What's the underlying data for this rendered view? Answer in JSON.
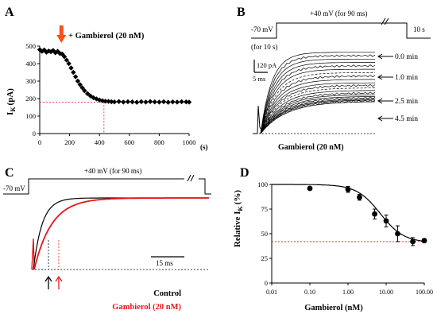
{
  "chart_data": [
    {
      "panel": "A",
      "type": "scatter",
      "ylabel_main": "I",
      "ylabel_sub": "K",
      "ylabel_unit": "(pA)",
      "x_unit": "(s)",
      "xlim": [
        0,
        1000
      ],
      "ylim": [
        0,
        500
      ],
      "x_ticks": [
        0,
        200,
        400,
        600,
        800,
        1000
      ],
      "y_ticks": [
        0,
        100,
        200,
        300,
        400,
        500
      ],
      "annotation": "+ Gambierol (20 nM)",
      "arrow_x": 145,
      "reference_y": 180,
      "reference_x": 430,
      "x": [
        0,
        15,
        30,
        45,
        60,
        75,
        90,
        105,
        120,
        135,
        150,
        165,
        180,
        195,
        210,
        225,
        240,
        255,
        270,
        285,
        300,
        320,
        340,
        360,
        380,
        400,
        420,
        440,
        460,
        480,
        500,
        530,
        560,
        590,
        620,
        650,
        680,
        710,
        740,
        770,
        800,
        830,
        860,
        890,
        920,
        950,
        980,
        1000
      ],
      "y": [
        480,
        470,
        478,
        465,
        472,
        468,
        475,
        462,
        470,
        458,
        455,
        440,
        420,
        400,
        375,
        350,
        325,
        300,
        280,
        262,
        245,
        228,
        215,
        205,
        198,
        192,
        188,
        185,
        184,
        182,
        181,
        183,
        180,
        182,
        181,
        179,
        182,
        180,
        183,
        181,
        180,
        182,
        179,
        181,
        180,
        182,
        181,
        180
      ]
    },
    {
      "panel": "B",
      "type": "line",
      "protocol_left": "-70 mV",
      "protocol_for": "(for 10 s)",
      "protocol_step": "+40 mV (for 90 ms)",
      "protocol_right": "10 s",
      "scale_current": "120 pA",
      "scale_time": "5 ms",
      "time_labels": [
        "0.0 min",
        "1.0 min",
        "2.5 min",
        "4.5 min"
      ],
      "label_bottom": "Gambierol (20 nM)",
      "series_steady_state": [
        480,
        460,
        440,
        420,
        400,
        380,
        360,
        340,
        320,
        300,
        285,
        270,
        255,
        240,
        230,
        220,
        212,
        205,
        200,
        195,
        190
      ]
    },
    {
      "panel": "C",
      "type": "line",
      "protocol_left": "-70 mV",
      "protocol_step": "+40 mV (for 90 ms)",
      "scale_time": "15 ms",
      "legend": [
        {
          "name": "Control",
          "color": "#000000"
        },
        {
          "name": "Gambierol (20 nM)",
          "color": "#e8141b"
        }
      ]
    },
    {
      "panel": "D",
      "type": "scatter",
      "x_scale": "log",
      "ylabel_main": "Relative I",
      "ylabel_sub": "K",
      "ylabel_unit": "(%)",
      "xlabel": "Gambierol (nM)",
      "xlim": [
        0.01,
        100
      ],
      "ylim": [
        0,
        100
      ],
      "x_ticks": [
        "0.01",
        "0.10",
        "1.00",
        "10.00",
        "100.00"
      ],
      "y_ticks": [
        0,
        25,
        50,
        75,
        100
      ],
      "x": [
        0.1,
        1,
        2,
        5,
        10,
        20,
        50,
        100
      ],
      "y": [
        96,
        95,
        87,
        70,
        63,
        50,
        42,
        43
      ],
      "err": [
        0,
        3,
        3,
        5,
        6,
        8,
        4,
        2
      ],
      "reference_y": 42,
      "fit": {
        "top": 100,
        "bottom": 41,
        "ic50": 7.0,
        "hill": 1.4
      }
    }
  ],
  "panel_labels": [
    "A",
    "B",
    "C",
    "D"
  ],
  "colors": {
    "red": "#e8141b",
    "black": "#000000"
  }
}
